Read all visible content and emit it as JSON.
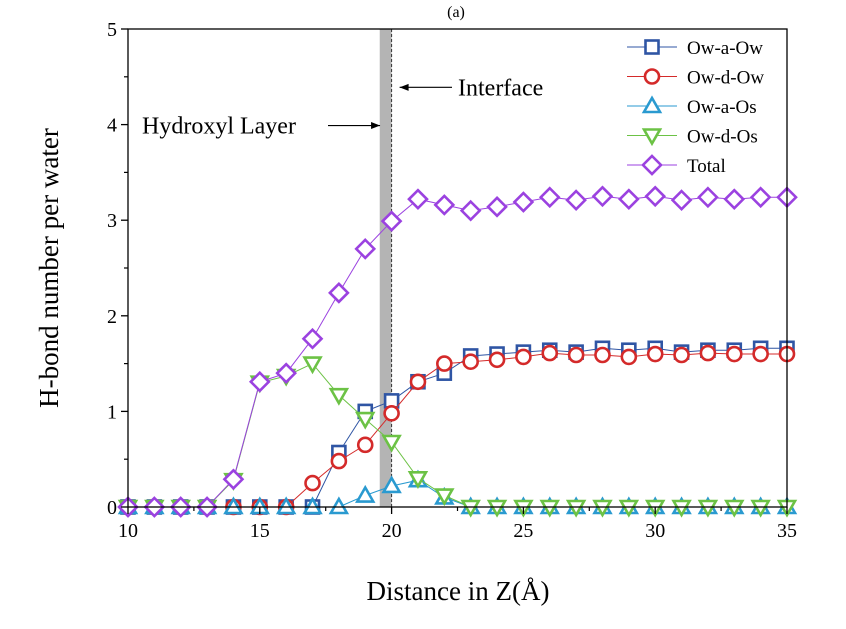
{
  "chart_data": {
    "type": "line",
    "panel_label": "(a)",
    "xlabel": "Distance in Z(Å)",
    "ylabel": "H-bond number per water",
    "xlim": [
      10,
      35
    ],
    "ylim": [
      0,
      5
    ],
    "x_ticks": [
      "10",
      "15",
      "20",
      "25",
      "30",
      "35"
    ],
    "y_ticks": [
      "0",
      "1",
      "2",
      "3",
      "4",
      "5"
    ],
    "grid": false,
    "legend_position": "top-right",
    "x": [
      10,
      11,
      12,
      13,
      14,
      15,
      16,
      17,
      18,
      19,
      20,
      21,
      22,
      23,
      24,
      25,
      26,
      27,
      28,
      29,
      30,
      31,
      32,
      33,
      34,
      35
    ],
    "series": [
      {
        "name": "Ow-a-Ow",
        "marker": "square",
        "color": "#2f55a4",
        "values": [
          0,
          0,
          0,
          0,
          0,
          0,
          0,
          0,
          0.57,
          1.0,
          1.11,
          1.31,
          1.4,
          1.58,
          1.6,
          1.62,
          1.64,
          1.62,
          1.66,
          1.64,
          1.66,
          1.62,
          1.64,
          1.64,
          1.66,
          1.66
        ]
      },
      {
        "name": "Ow-d-Ow",
        "marker": "circle",
        "color": "#d42a2a",
        "values": [
          0,
          0,
          0,
          0,
          0,
          0,
          0,
          0.25,
          0.48,
          0.65,
          0.98,
          1.31,
          1.5,
          1.52,
          1.54,
          1.57,
          1.61,
          1.59,
          1.59,
          1.57,
          1.6,
          1.59,
          1.61,
          1.6,
          1.6,
          1.6
        ]
      },
      {
        "name": "Ow-a-Os",
        "marker": "triangle-up",
        "color": "#2a9ad0",
        "values": [
          0,
          0,
          0,
          0,
          0,
          0,
          0,
          0,
          0,
          0.12,
          0.22,
          0.28,
          0.1,
          0,
          0,
          0,
          0,
          0,
          0,
          0,
          0,
          0,
          0,
          0,
          0,
          0
        ]
      },
      {
        "name": "Ow-d-Os",
        "marker": "triangle-down",
        "color": "#6cc245",
        "values": [
          0,
          0,
          0,
          0,
          0.28,
          1.3,
          1.37,
          1.5,
          1.17,
          0.92,
          0.68,
          0.3,
          0.12,
          0,
          0,
          0,
          0,
          0,
          0,
          0,
          0,
          0,
          0,
          0,
          0,
          0
        ]
      },
      {
        "name": "Total",
        "marker": "diamond",
        "color": "#9b42e0",
        "values": [
          0,
          0,
          0,
          0,
          0.29,
          1.31,
          1.4,
          1.76,
          2.24,
          2.7,
          2.99,
          3.22,
          3.16,
          3.1,
          3.14,
          3.19,
          3.24,
          3.21,
          3.25,
          3.22,
          3.25,
          3.21,
          3.24,
          3.22,
          3.24,
          3.24
        ]
      }
    ],
    "annotations": [
      {
        "text": "Interface",
        "arrow_to_x": 20.0,
        "y": 4.39
      },
      {
        "text": "Hydroxyl Layer",
        "arrow_to_x": 19.6,
        "y": 3.99
      }
    ],
    "shaded_band": {
      "x_from": 19.55,
      "x_to": 20.0,
      "color": "#b4b4b4"
    },
    "interface_line_x": 20.0
  }
}
